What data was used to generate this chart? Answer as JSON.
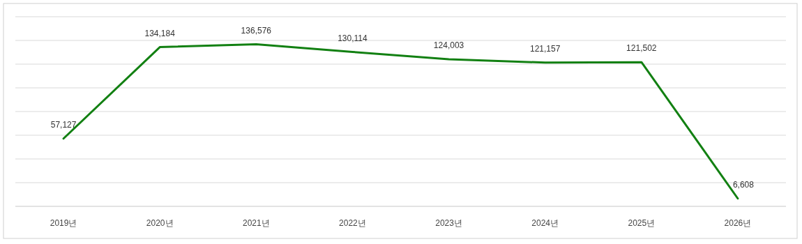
{
  "chart_data": {
    "type": "line",
    "categories": [
      "2019년",
      "2020년",
      "2021년",
      "2022년",
      "2023년",
      "2024년",
      "2025년",
      "2026년"
    ],
    "series": [
      {
        "color": "#128012",
        "values": [
          57127,
          134184,
          136576,
          130114,
          124003,
          121157,
          121502,
          6608
        ],
        "value_labels": [
          "57,127",
          "134,184",
          "136,576",
          "130,114",
          "124,003",
          "121,157",
          "121,502",
          "6,608"
        ]
      }
    ],
    "tick_labels": "x",
    "grid": "y"
  }
}
